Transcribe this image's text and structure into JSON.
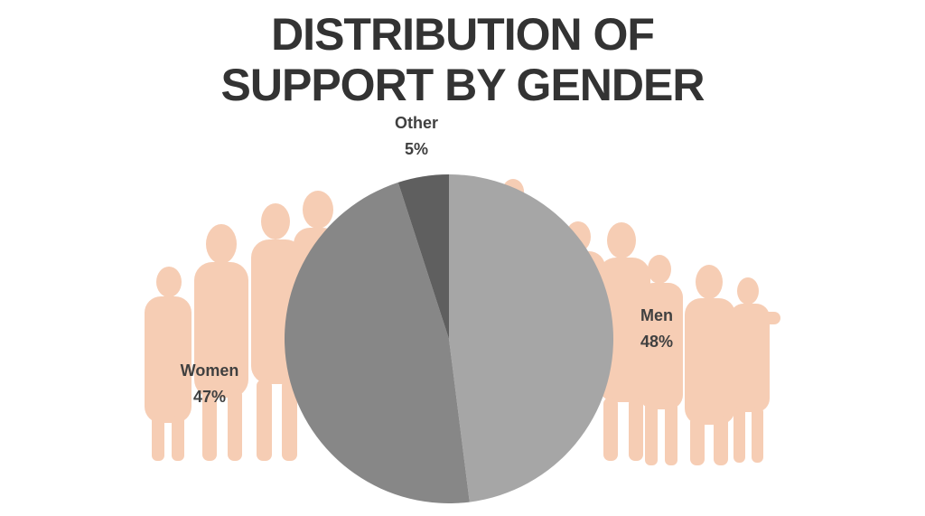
{
  "chart_data": {
    "type": "pie",
    "title": "DISTRIBUTION OF SUPPORT BY GENDER",
    "categories": [
      "Men",
      "Women",
      "Other"
    ],
    "values": [
      48,
      47,
      5
    ],
    "value_labels": [
      "48%",
      "47%",
      "5%"
    ],
    "colors": [
      "#a6a6a6",
      "#878787",
      "#5f5f5f"
    ]
  }
}
